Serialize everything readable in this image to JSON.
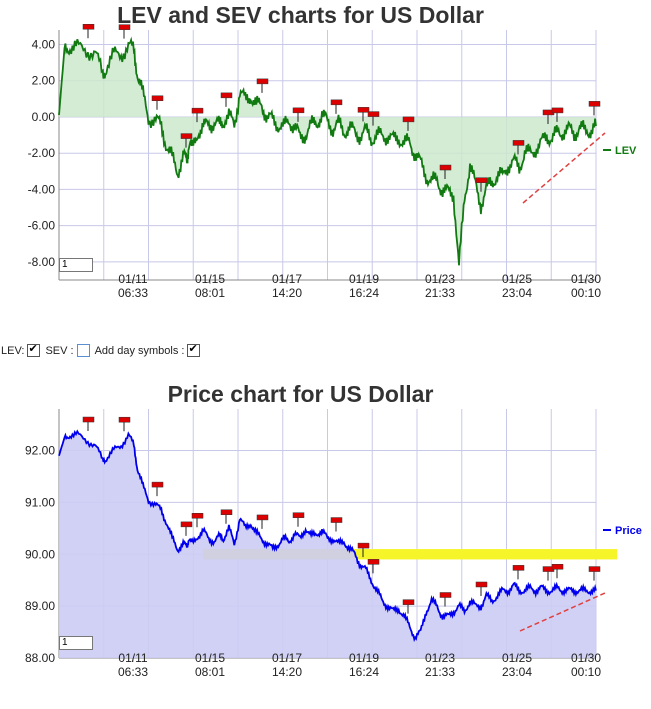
{
  "controls": {
    "lev_label": "LEV:",
    "sev_label": "SEV :",
    "day_symbols_label": "Add day symbols :",
    "lev_checked": true,
    "sev_checked": false,
    "day_symbols_checked": true
  },
  "chart_data": [
    {
      "type": "line",
      "title": "LEV and SEV charts for US Dollar",
      "xlabel": "",
      "ylabel": "",
      "ylim": [
        -9,
        4.8
      ],
      "y_ticks": [
        "4.00",
        "2.00",
        "0.00",
        "-2.00",
        "-4.00",
        "-6.00",
        "-8.00"
      ],
      "x_ticks": [
        {
          "date": "01/11",
          "time": "06:33"
        },
        {
          "date": "01/15",
          "time": "08:01"
        },
        {
          "date": "01/17",
          "time": "14:20"
        },
        {
          "date": "01/19",
          "time": "16:24"
        },
        {
          "date": "01/23",
          "time": "21:33"
        },
        {
          "date": "01/25",
          "time": "23:04"
        },
        {
          "date": "01/30",
          "time": "00:10"
        }
      ],
      "legend": "LEV",
      "legend_placement": "right",
      "input_value": "1",
      "colors": {
        "line": "#117a11",
        "fill": "#cde8cd",
        "marker": "#dd0000",
        "trend": "#e04040"
      },
      "series": [
        {
          "name": "LEV",
          "x": [
            0,
            0.3,
            0.6,
            1.0,
            1.5,
            2.0,
            2.4,
            2.6,
            3.0,
            3.4,
            3.8,
            4.1,
            4.3,
            4.6,
            4.9,
            5.3,
            5.6,
            5.9,
            6.2,
            6.5,
            6.8,
            7.0,
            7.1,
            7.3,
            7.6,
            7.9,
            8.2,
            8.5,
            8.8,
            9.0,
            9.3,
            9.6,
            9.9,
            10.2,
            10.5,
            10.8,
            11.1,
            11.4,
            11.7,
            12.0,
            12.3,
            12.6,
            12.9,
            13.2,
            13.5,
            13.8,
            14.1,
            14.4,
            14.7,
            15.0,
            15.3,
            15.6,
            15.9,
            16.2,
            16.5,
            16.8,
            17.1,
            17.4,
            17.7,
            18.0,
            18.3,
            18.6,
            18.9,
            19.2,
            19.5,
            19.8,
            20.1,
            20.4,
            20.7,
            21.0,
            21.3,
            21.6,
            21.9,
            22.2,
            22.5,
            22.8,
            23.1,
            23.4,
            23.7,
            24.0,
            24.3,
            24.6,
            24.9,
            25.2,
            25.5,
            25.8,
            26.1,
            26.4,
            26.7,
            27.0,
            27.3,
            27.6,
            27.9,
            28.2,
            28.5,
            28.8,
            29.1,
            29.4
          ],
          "values": [
            0.1,
            3.8,
            3.9,
            3.8,
            3.7,
            3.6,
            2.2,
            2.8,
            3.4,
            3.5,
            3.9,
            3.7,
            2.4,
            1.2,
            0.0,
            -0.2,
            -0.5,
            -1.6,
            -2.3,
            -3.0,
            -2.2,
            -2.4,
            -1.5,
            -1.8,
            -0.8,
            -0.6,
            -0.4,
            -0.3,
            -0.5,
            -0.2,
            0.0,
            -0.4,
            1.4,
            0.9,
            1.2,
            0.6,
            0.7,
            0.0,
            -0.2,
            -0.4,
            -0.6,
            -0.2,
            -0.5,
            -1.2,
            -0.9,
            -0.5,
            -0.3,
            0.1,
            -0.3,
            -0.6,
            -0.4,
            -0.8,
            -0.6,
            -0.9,
            -1.0,
            -0.8,
            -1.2,
            -1.0,
            -1.1,
            -1.0,
            -1.3,
            -1.1,
            -1.5,
            -1.4,
            -2.0,
            -2.6,
            -3.2,
            -3.6,
            -3.5,
            -4.0,
            -4.2,
            -4.2,
            -8.3,
            -4.5,
            -2.6,
            -3.8,
            -4.8,
            -4.0,
            -3.6,
            -3.2,
            -3.3,
            -2.6,
            -2.5,
            -2.8,
            -1.9,
            -2.1,
            -1.7,
            -1.5,
            -1.0,
            -1.2,
            -0.9,
            -0.8,
            -0.7,
            -0.9,
            -0.6,
            -0.8,
            -0.7,
            -0.5
          ]
        }
      ]
    },
    {
      "type": "line",
      "title": "Price chart for US Dollar",
      "xlabel": "",
      "ylabel": "",
      "ylim": [
        88.0,
        92.8
      ],
      "y_ticks": [
        "92.00",
        "91.00",
        "90.00",
        "89.00",
        "88.00"
      ],
      "x_ticks": [
        {
          "date": "01/11",
          "time": "06:33"
        },
        {
          "date": "01/15",
          "time": "08:01"
        },
        {
          "date": "01/17",
          "time": "14:20"
        },
        {
          "date": "01/19",
          "time": "16:24"
        },
        {
          "date": "01/23",
          "time": "21:33"
        },
        {
          "date": "01/25",
          "time": "23:04"
        },
        {
          "date": "01/30",
          "time": "00:10"
        }
      ],
      "legend": "Price",
      "legend_placement": "right",
      "input_value": "1",
      "colors": {
        "line": "#0000ee",
        "fill": "#ccccf4",
        "marker": "#dd0000",
        "band": "#f5f52a",
        "trend": "#e04040"
      },
      "band": {
        "y_low": 89.9,
        "y_high": 90.1
      },
      "series": [
        {
          "name": "Price",
          "x": [
            0,
            0.3,
            0.6,
            1.0,
            1.5,
            2.0,
            2.4,
            2.6,
            3.0,
            3.4,
            3.8,
            4.1,
            4.3,
            4.6,
            4.9,
            5.3,
            5.6,
            5.9,
            6.2,
            6.5,
            6.8,
            7.0,
            7.1,
            7.3,
            7.6,
            7.9,
            8.2,
            8.5,
            8.8,
            9.0,
            9.3,
            9.6,
            9.9,
            10.2,
            10.5,
            10.8,
            11.1,
            11.4,
            11.7,
            12.0,
            12.3,
            12.6,
            12.9,
            13.2,
            13.5,
            13.8,
            14.1,
            14.4,
            14.7,
            15.0,
            15.3,
            15.6,
            15.9,
            16.2,
            16.5,
            16.8,
            17.1,
            17.4,
            17.7,
            18.0,
            18.3,
            18.6,
            18.9,
            19.2,
            19.5,
            19.8,
            20.1,
            20.4,
            20.7,
            21.0,
            21.3,
            21.6,
            21.9,
            22.2,
            22.5,
            22.8,
            23.1,
            23.4,
            23.7,
            24.0,
            24.3,
            24.6,
            24.9,
            25.2,
            25.5,
            25.8,
            26.1,
            26.4,
            26.7,
            27.0,
            27.3,
            27.6,
            27.9,
            28.2,
            28.5,
            28.8,
            29.1,
            29.4
          ],
          "values": [
            91.9,
            92.25,
            92.3,
            92.3,
            92.2,
            92.1,
            91.8,
            91.85,
            92.0,
            92.1,
            92.3,
            92.1,
            91.65,
            91.3,
            91.05,
            90.95,
            90.85,
            90.6,
            90.3,
            90.1,
            90.2,
            90.15,
            90.3,
            90.2,
            90.35,
            90.45,
            90.3,
            90.25,
            90.35,
            90.3,
            90.5,
            90.2,
            90.7,
            90.5,
            90.6,
            90.4,
            90.3,
            90.2,
            90.1,
            90.2,
            90.3,
            90.25,
            90.4,
            90.3,
            90.5,
            90.35,
            90.4,
            90.45,
            90.3,
            90.3,
            90.2,
            90.25,
            90.1,
            90.0,
            89.8,
            89.7,
            89.5,
            89.3,
            89.1,
            89.0,
            88.9,
            88.95,
            88.8,
            88.6,
            88.4,
            88.5,
            88.9,
            89.1,
            89.0,
            88.8,
            88.8,
            88.9,
            89.0,
            88.9,
            89.1,
            89.0,
            89.0,
            89.2,
            89.1,
            89.2,
            89.3,
            89.3,
            89.4,
            89.3,
            89.3,
            89.35,
            89.3,
            89.35,
            89.3,
            89.3,
            89.35,
            89.3,
            89.3,
            89.3,
            89.3,
            89.3,
            89.3,
            89.3
          ]
        }
      ]
    }
  ]
}
